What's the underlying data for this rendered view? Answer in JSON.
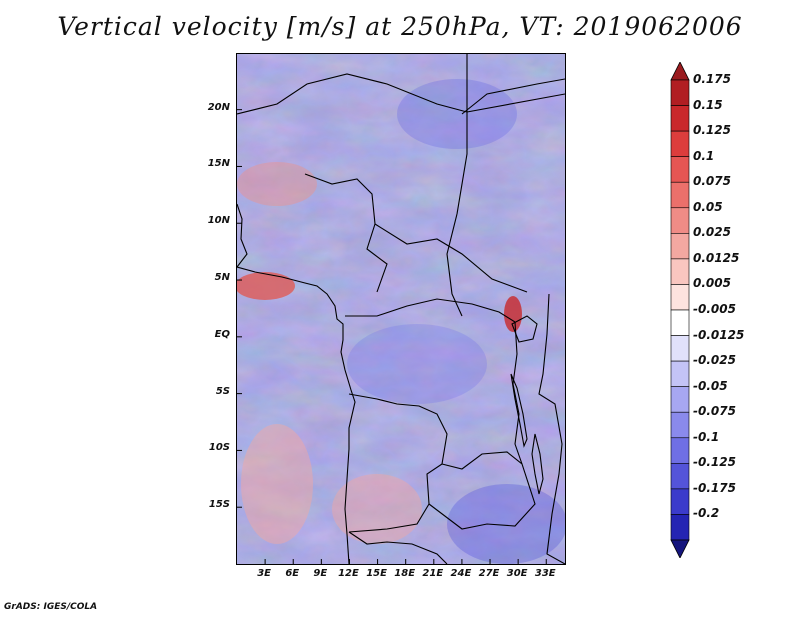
{
  "title": "Vertical velocity [m/s] at 250hPa, VT: 2019062006",
  "credit": "GrADS: IGES/COLA",
  "map": {
    "lat_range": [
      -20,
      24.9
    ],
    "lon_range": [
      0.0,
      35.0
    ],
    "lat_ticks": [
      {
        "value": 20,
        "label": "20N"
      },
      {
        "value": 15,
        "label": "15N"
      },
      {
        "value": 10,
        "label": "10N"
      },
      {
        "value": 5,
        "label": "5N"
      },
      {
        "value": 0,
        "label": "EQ"
      },
      {
        "value": -5,
        "label": "5S"
      },
      {
        "value": -10,
        "label": "10S"
      },
      {
        "value": -15,
        "label": "15S"
      }
    ],
    "lon_ticks": [
      {
        "value": 3,
        "label": "3E"
      },
      {
        "value": 6,
        "label": "6E"
      },
      {
        "value": 9,
        "label": "9E"
      },
      {
        "value": 12,
        "label": "12E"
      },
      {
        "value": 15,
        "label": "15E"
      },
      {
        "value": 18,
        "label": "18E"
      },
      {
        "value": 21,
        "label": "21E"
      },
      {
        "value": 24,
        "label": "24E"
      },
      {
        "value": 27,
        "label": "27E"
      },
      {
        "value": 30,
        "label": "30E"
      },
      {
        "value": 33,
        "label": "33E"
      }
    ]
  },
  "legend": {
    "unit": "m/s",
    "levels": [
      {
        "label": "0.175",
        "color": "#b11e23"
      },
      {
        "label": "0.15",
        "color": "#c9282b"
      },
      {
        "label": "0.125",
        "color": "#dc3d3c"
      },
      {
        "label": "0.1",
        "color": "#e55653"
      },
      {
        "label": "0.075",
        "color": "#eb706b"
      },
      {
        "label": "0.05",
        "color": "#f08c86"
      },
      {
        "label": "0.025",
        "color": "#f4a8a1"
      },
      {
        "label": "0.0125",
        "color": "#f9c6c0"
      },
      {
        "label": "0.005",
        "color": "#fde3df"
      },
      {
        "label": "-0.005",
        "color": "#ffffff"
      },
      {
        "label": "-0.0125",
        "color": "#e1e1fb"
      },
      {
        "label": "-0.025",
        "color": "#c4c4f6"
      },
      {
        "label": "-0.05",
        "color": "#a7a7f1"
      },
      {
        "label": "-0.075",
        "color": "#8a8aec"
      },
      {
        "label": "-0.1",
        "color": "#6f6fe4"
      },
      {
        "label": "-0.125",
        "color": "#5454d9"
      },
      {
        "label": "-0.175",
        "color": "#3b3bcb"
      },
      {
        "label": "-0.2",
        "color": "#2424b3"
      }
    ],
    "top_arrow_color": "#9a1b1f",
    "bottom_arrow_color": "#15157d"
  }
}
